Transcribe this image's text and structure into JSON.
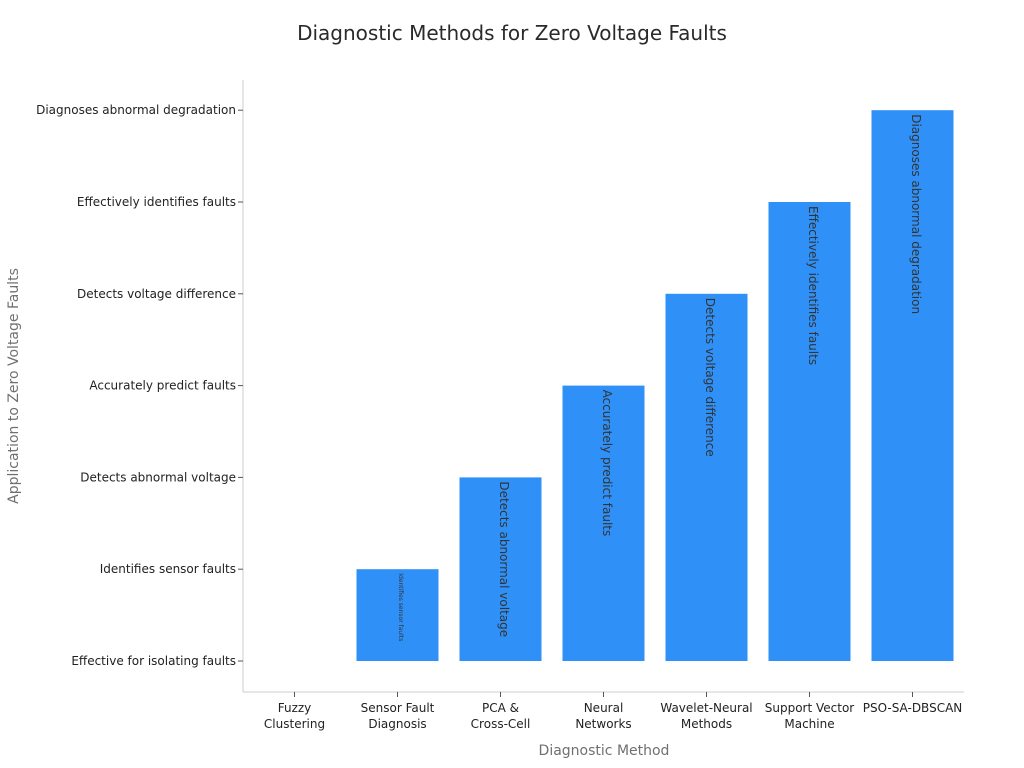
{
  "chart_data": {
    "type": "bar",
    "title": "Diagnostic Methods for Zero Voltage Faults",
    "xlabel": "Diagnostic Method",
    "ylabel": "Application to Zero Voltage Faults",
    "categories": [
      "Fuzzy Clustering",
      "Sensor Fault Diagnosis",
      "PCA & Cross-Cell",
      "Neural Networks",
      "Wavelet-Neural Methods",
      "Support Vector Machine",
      "PSO-SA-DBSCAN"
    ],
    "category_tick_lines": [
      [
        "Fuzzy",
        "Clustering"
      ],
      [
        "Sensor Fault",
        "Diagnosis"
      ],
      [
        "PCA &",
        "Cross-Cell"
      ],
      [
        "Neural",
        "Networks"
      ],
      [
        "Wavelet-Neural",
        "Methods"
      ],
      [
        "Support Vector",
        "Machine"
      ],
      [
        "PSO-SA-DBSCAN"
      ]
    ],
    "y_levels": [
      "Effective for isolating faults",
      "Identifies sensor faults",
      "Detects abnormal voltage",
      "Accurately predict faults",
      "Detects voltage difference",
      "Effectively identifies faults",
      "Diagnoses abnormal degradation"
    ],
    "values": [
      "Effective for isolating faults",
      "Identifies sensor faults",
      "Detects abnormal voltage",
      "Accurately predict faults",
      "Detects voltage difference",
      "Effectively identifies faults",
      "Diagnoses abnormal degradation"
    ],
    "value_indices": [
      0,
      1,
      2,
      3,
      4,
      5,
      6
    ],
    "data_labels": [
      "",
      "Identifies sensor faults",
      "Detects abnormal voltage",
      "Accurately predict faults",
      "Detects voltage difference",
      "Effectively identifies faults",
      "Diagnoses abnormal degradation"
    ],
    "bar_color": "#2f91f8",
    "grid": false,
    "legend": "none"
  }
}
